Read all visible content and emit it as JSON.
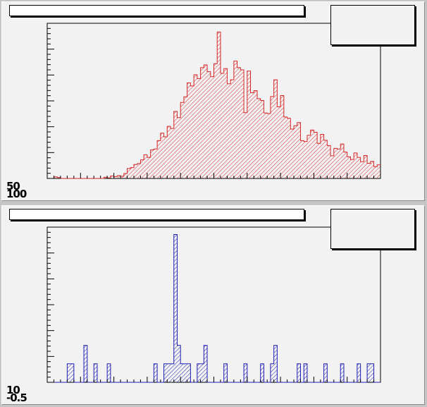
{
  "colors": {
    "pad_background": "#f2f2f2",
    "canvas_background": "#c6c6c6",
    "top_histogram": "#d62728",
    "bottom_histogram": "#1f1fb4"
  },
  "top_panel": {
    "title": "",
    "stats": "",
    "axis_label_top": "50",
    "axis_label_bottom": "100"
  },
  "bottom_panel": {
    "title": "",
    "stats": "",
    "axis_label_top": "10",
    "axis_label_bottom": "-0.5"
  },
  "chart_data": [
    {
      "type": "bar",
      "style": "histogram-step-hatched",
      "title": "",
      "xlabel": "",
      "ylabel": "",
      "grid": false,
      "x": [
        0,
        1,
        2,
        3,
        4,
        5,
        6,
        7,
        8,
        9,
        10,
        11,
        12,
        13,
        14,
        15,
        16,
        17,
        18,
        19,
        20,
        21,
        22,
        23,
        24,
        25,
        26,
        27,
        28,
        29,
        30,
        31,
        32,
        33,
        34,
        35,
        36,
        37,
        38,
        39,
        40,
        41,
        42,
        43,
        44,
        45,
        46,
        47,
        48,
        49,
        50,
        51,
        52,
        53,
        54,
        55,
        56,
        57,
        58,
        59,
        60,
        61,
        62,
        63,
        64,
        65,
        66,
        67,
        68,
        69,
        70,
        71,
        72,
        73,
        74,
        75,
        76,
        77,
        78,
        79,
        80,
        81,
        82,
        83,
        84,
        85,
        86,
        87,
        88,
        89,
        90,
        91,
        92,
        93,
        94,
        95,
        96,
        97,
        98,
        99
      ],
      "values": [
        0,
        0,
        0.5,
        0.3,
        0,
        0,
        0,
        0,
        0,
        0,
        0,
        0,
        0,
        0,
        0,
        0,
        0,
        0.4,
        0.2,
        0.8,
        0.6,
        0.9,
        0.7,
        1.6,
        3.2,
        3.5,
        4.5,
        4.8,
        6.0,
        7.6,
        6.8,
        9.2,
        9.5,
        12.2,
        14.6,
        13.4,
        16.8,
        16.1,
        21.6,
        19.6,
        24.5,
        26.3,
        30.8,
        29.8,
        33.4,
        32.2,
        35.7,
        36.6,
        34.4,
        32.8,
        37.0,
        47.2,
        33.9,
        35.4,
        30.5,
        31.8,
        37.8,
        35.7,
        35.0,
        21.2,
        34.6,
        27.6,
        28.3,
        25.7,
        25.1,
        21.1,
        20.9,
        26.4,
        31.8,
        23.1,
        26.7,
        19.8,
        19.4,
        15.9,
        17.0,
        18.0,
        12.2,
        11.9,
        13.9,
        15.6,
        14.9,
        11.3,
        14.2,
        12.3,
        10.6,
        7.3,
        9.7,
        9.5,
        11.1,
        8.5,
        7.0,
        6.1,
        8.2,
        6.8,
        5.4,
        7.4,
        4.9,
        5.5,
        3.8,
        4.4
      ],
      "ylim": [
        0,
        50
      ],
      "xlim": [
        0,
        100
      ]
    },
    {
      "type": "bar",
      "style": "histogram-step-hatched",
      "title": "",
      "xlabel": "",
      "ylabel": "",
      "grid": false,
      "x": [
        0,
        1,
        2,
        3,
        4,
        5,
        6,
        7,
        8,
        9,
        10,
        11,
        12,
        13,
        14,
        15,
        16,
        17,
        18,
        19,
        20,
        21,
        22,
        23,
        24,
        25,
        26,
        27,
        28,
        29,
        30,
        31,
        32,
        33,
        34,
        35,
        36,
        37,
        38,
        39,
        40,
        41,
        42,
        43,
        44,
        45,
        46,
        47,
        48,
        49,
        50,
        51,
        52,
        53,
        54,
        55,
        56,
        57,
        58,
        59,
        60,
        61,
        62,
        63,
        64,
        65,
        66,
        67,
        68,
        69,
        70,
        71,
        72,
        73,
        74,
        75,
        76,
        77,
        78,
        79,
        80,
        81,
        82,
        83,
        84,
        85,
        86,
        87,
        88,
        89,
        90,
        91,
        92,
        93,
        94,
        95,
        96,
        97,
        98,
        99
      ],
      "values": [
        0,
        0,
        0,
        0,
        0,
        0,
        1,
        1,
        0,
        0,
        0,
        2,
        0,
        0,
        1,
        0,
        0,
        0,
        1,
        0,
        0,
        0,
        0,
        0,
        0,
        0,
        0,
        0,
        0,
        0,
        0,
        0,
        1,
        0,
        0,
        1,
        1,
        1,
        8,
        2,
        1,
        1,
        1,
        0,
        0,
        1,
        1,
        2,
        0,
        0,
        0,
        0,
        0,
        1,
        0,
        0,
        0,
        0,
        0,
        1,
        0,
        0,
        0,
        0,
        1,
        0,
        0,
        1,
        2,
        0,
        0,
        0,
        0,
        0,
        0,
        1,
        0,
        1,
        0,
        0,
        0,
        0,
        0,
        1,
        0,
        0,
        0,
        0,
        1,
        0,
        0,
        0,
        0,
        1,
        0,
        0,
        1,
        1,
        0,
        0
      ],
      "ylim": [
        0,
        8.4
      ],
      "xlim": [
        0,
        100
      ]
    }
  ]
}
